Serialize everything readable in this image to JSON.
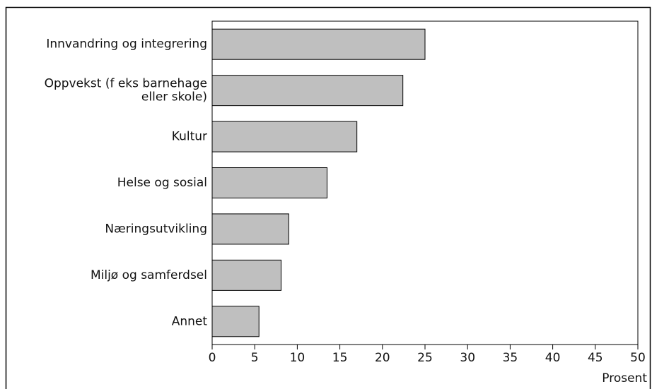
{
  "chart_data": {
    "type": "barh",
    "categories": [
      [
        "Innvandring og integrering"
      ],
      [
        "Oppvekst  (f eks barnehage",
        "eller skole)"
      ],
      [
        "Kultur"
      ],
      [
        "Helse og sosial"
      ],
      [
        "Næringsutvikling"
      ],
      [
        "Miljø og samferdsel"
      ],
      [
        "Annet"
      ]
    ],
    "values": [
      25,
      22.4,
      17,
      13.5,
      9,
      8.1,
      5.5
    ],
    "color": "#bfbfbf",
    "xlim": [
      0,
      50
    ],
    "xticks": [
      0,
      5,
      10,
      15,
      20,
      25,
      30,
      35,
      40,
      45,
      50
    ],
    "xlabel": "Prosent"
  }
}
